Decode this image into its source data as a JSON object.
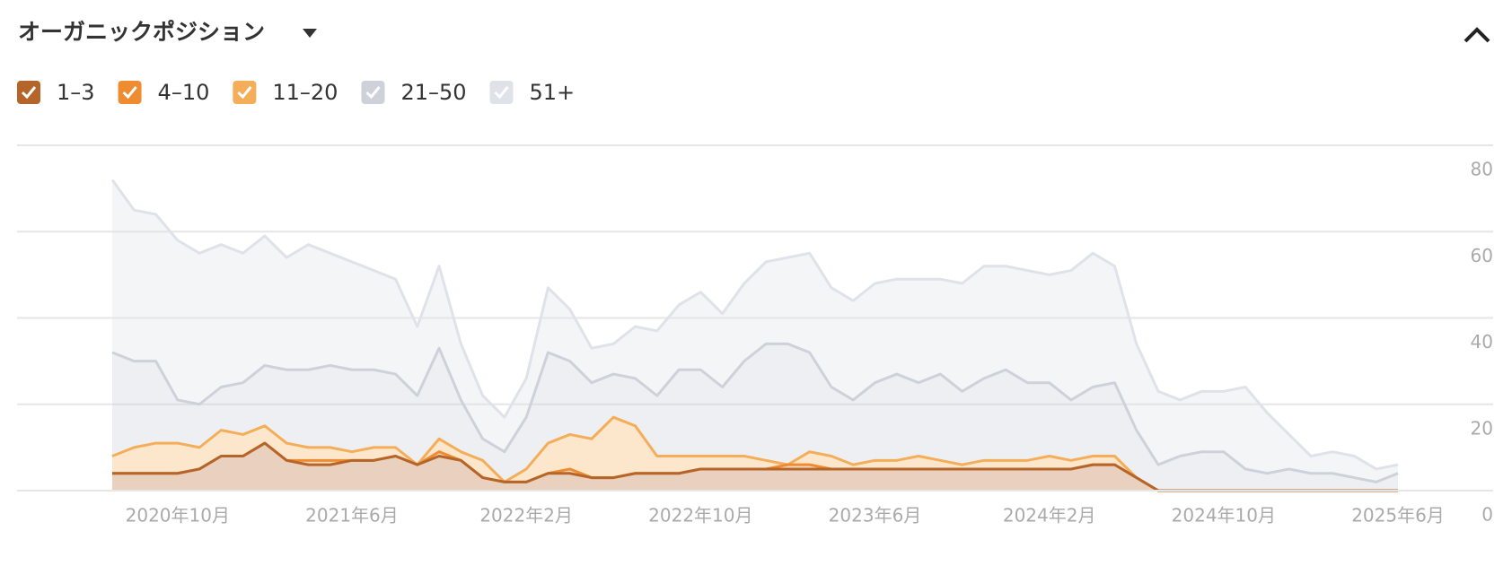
{
  "chart_data": {
    "type": "stacked-area",
    "title": "オーガニックポジション",
    "categories": [
      null,
      null,
      null,
      "2020年10月",
      null,
      null,
      null,
      null,
      null,
      null,
      null,
      "2021年6月",
      null,
      null,
      null,
      null,
      null,
      null,
      null,
      "2022年2月",
      null,
      null,
      null,
      null,
      null,
      null,
      null,
      "2022年10月",
      null,
      null,
      null,
      null,
      null,
      null,
      null,
      "2023年6月",
      null,
      null,
      null,
      null,
      null,
      null,
      null,
      "2024年2月",
      null,
      null,
      null,
      null,
      null,
      null,
      null,
      "2024年10月",
      null,
      null,
      null,
      null,
      null,
      null,
      null,
      "2025年6月"
    ],
    "series": [
      {
        "name": "1–3",
        "color": "#b5652a",
        "values": [
          4,
          4,
          4,
          4,
          5,
          8,
          8,
          11,
          7,
          6,
          6,
          7,
          7,
          8,
          6,
          8,
          7,
          3,
          2,
          2,
          4,
          4,
          3,
          3,
          4,
          4,
          4,
          5,
          5,
          5,
          5,
          5,
          5,
          5,
          5,
          5,
          5,
          5,
          5,
          5,
          5,
          5,
          5,
          5,
          5,
          6,
          6,
          3,
          0,
          0,
          0,
          0,
          0,
          0,
          0,
          0,
          0,
          0,
          0,
          0
        ]
      },
      {
        "name": "4–10",
        "color": "#ef8b30",
        "values": [
          0,
          0,
          0,
          0,
          0,
          0,
          0,
          0,
          0,
          1,
          1,
          0,
          0,
          0,
          0,
          1,
          0,
          0,
          0,
          0,
          0,
          1,
          0,
          0,
          0,
          0,
          0,
          0,
          0,
          0,
          0,
          1,
          1,
          0,
          0,
          0,
          0,
          0,
          0,
          0,
          0,
          0,
          0,
          0,
          0,
          0,
          0,
          0,
          0,
          0,
          0,
          0,
          0,
          0,
          0,
          0,
          0,
          0,
          0,
          0
        ]
      },
      {
        "name": "11–20",
        "color": "#f4ae5a",
        "values": [
          4,
          6,
          7,
          7,
          5,
          6,
          5,
          4,
          4,
          3,
          3,
          2,
          3,
          2,
          0,
          3,
          2,
          4,
          0,
          3,
          7,
          8,
          9,
          14,
          11,
          4,
          4,
          3,
          3,
          3,
          2,
          0,
          3,
          3,
          1,
          2,
          2,
          3,
          2,
          1,
          2,
          2,
          2,
          3,
          2,
          2,
          2,
          0,
          0,
          0,
          0,
          0,
          0,
          0,
          0,
          0,
          0,
          0,
          0,
          0
        ]
      },
      {
        "name": "21–50",
        "color": "#cdd2da",
        "values": [
          24,
          20,
          19,
          10,
          10,
          10,
          12,
          14,
          17,
          18,
          19,
          19,
          18,
          17,
          16,
          21,
          12,
          5,
          7,
          12,
          21,
          17,
          13,
          10,
          11,
          14,
          20,
          20,
          16,
          22,
          27,
          28,
          23,
          16,
          15,
          18,
          20,
          17,
          20,
          17,
          19,
          21,
          18,
          17,
          14,
          16,
          17,
          11,
          6,
          8,
          9,
          9,
          5,
          4,
          5,
          4,
          4,
          3,
          2,
          4
        ]
      },
      {
        "name": "51+",
        "color": "#dfe2e8",
        "values": [
          40,
          35,
          34,
          37,
          35,
          33,
          30,
          30,
          26,
          29,
          26,
          25,
          23,
          22,
          16,
          19,
          13,
          10,
          8,
          9,
          15,
          12,
          8,
          7,
          12,
          15,
          15,
          18,
          17,
          18,
          19,
          20,
          23,
          23,
          23,
          23,
          22,
          24,
          22,
          25,
          26,
          24,
          26,
          25,
          30,
          31,
          27,
          20,
          17,
          13,
          14,
          14,
          19,
          14,
          8,
          4,
          5,
          5,
          3,
          2
        ]
      }
    ],
    "ylim": [
      0,
      80
    ],
    "yticks": [
      0,
      20,
      40,
      60,
      80
    ],
    "grid": true
  }
}
